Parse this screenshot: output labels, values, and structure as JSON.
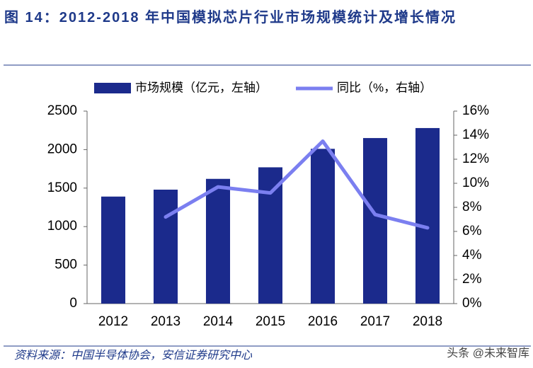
{
  "chart_data": {
    "type": "bar",
    "title": "图 14：2012-2018 年中国模拟芯片行业市场规模统计及增长情况",
    "categories": [
      "2012",
      "2013",
      "2014",
      "2015",
      "2016",
      "2017",
      "2018"
    ],
    "series": [
      {
        "name": "市场规模（亿元，左轴）",
        "type": "bar",
        "color": "#1b2a8c",
        "values": [
          1390,
          1480,
          1620,
          1770,
          2010,
          2150,
          2280
        ]
      },
      {
        "name": "同比（%，右轴）",
        "type": "line",
        "axis": "y2",
        "color": "#7b7ff0",
        "values": [
          null,
          7.2,
          9.7,
          9.2,
          13.5,
          7.4,
          6.3
        ]
      }
    ],
    "ylim": [
      0,
      2500
    ],
    "yticks": [
      0,
      500,
      1000,
      1500,
      2000,
      2500
    ],
    "y2lim": [
      0,
      16
    ],
    "y2ticks": [
      {
        "value": 0,
        "label": "0%"
      },
      {
        "value": 2,
        "label": "2%"
      },
      {
        "value": 4,
        "label": "4%"
      },
      {
        "value": 6,
        "label": "6%"
      },
      {
        "value": 8,
        "label": "8%"
      },
      {
        "value": 10,
        "label": "10%"
      },
      {
        "value": 12,
        "label": "12%"
      },
      {
        "value": 14,
        "label": "14%"
      },
      {
        "value": 16,
        "label": "16%"
      }
    ],
    "grid": false,
    "source": "资料来源：中国半导体协会，安信证券研究中心",
    "watermark": "头条 @未来智库"
  }
}
